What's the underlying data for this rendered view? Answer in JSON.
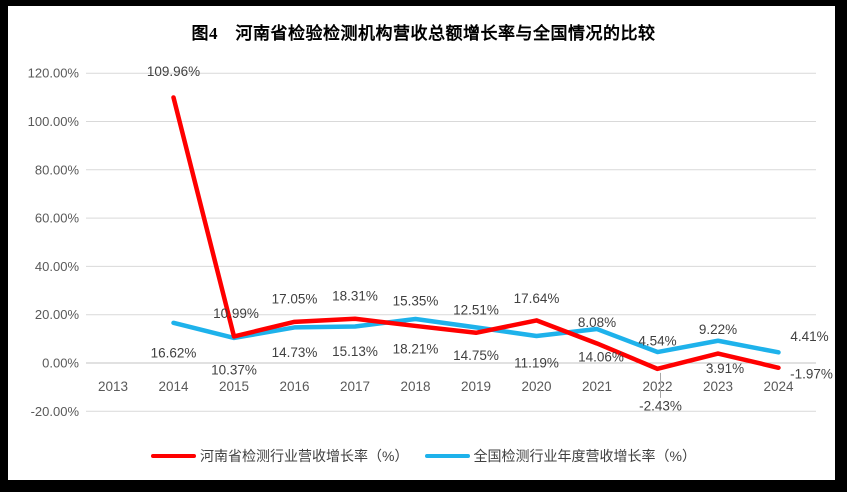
{
  "chart_data": {
    "type": "line",
    "title": "图4　河南省检验检测机构营收总额增长率与全国情况的比较",
    "x_categories": [
      "2013",
      "2014",
      "2015",
      "2016",
      "2017",
      "2018",
      "2019",
      "2020",
      "2021",
      "2022",
      "2023",
      "2024"
    ],
    "y_axis": {
      "ticks": [
        120,
        100,
        80,
        60,
        40,
        20,
        0,
        -20
      ],
      "tick_labels": [
        "120.00%",
        "100.00%",
        "80.00%",
        "60.00%",
        "40.00%",
        "20.00%",
        "0.00%",
        "-20.00%"
      ],
      "ylim": [
        -20,
        120
      ],
      "tick_step": 20
    },
    "grid": "horizontal",
    "legend_position": "bottom",
    "colors": {
      "henan": "#FF0000",
      "national": "#1EB2EB",
      "gridline": "#D9D9D9",
      "zero_line": "#C3C3C3",
      "axis_text": "#595959",
      "label_text": "#404040",
      "leader_line": "#A6A6A6"
    },
    "series": [
      {
        "key": "henan",
        "name": "河南省检测行业营收增长率（%）",
        "color": "#FF0000",
        "values": [
          null,
          109.96,
          10.99,
          17.05,
          18.31,
          15.35,
          12.51,
          17.64,
          8.08,
          -2.43,
          3.91,
          -1.97
        ],
        "data_labels": [
          null,
          "109.96%",
          "10.99%",
          "17.05%",
          "18.31%",
          "15.35%",
          "12.51%",
          "17.64%",
          "8.08%",
          "-2.43%",
          "3.91%",
          "-1.97%"
        ],
        "label_offsets": [
          null,
          [
            0,
            -26
          ],
          [
            2,
            -23
          ],
          [
            0,
            -23
          ],
          [
            0,
            -23
          ],
          [
            0,
            -25
          ],
          [
            0,
            -23
          ],
          [
            0,
            -22
          ],
          [
            0,
            -21
          ],
          [
            3,
            37,
            1
          ],
          [
            7,
            15
          ],
          [
            33,
            6
          ]
        ]
      },
      {
        "key": "national",
        "name": "全国检测行业年度营收增长率（%）",
        "color": "#1EB2EB",
        "values": [
          null,
          16.62,
          10.37,
          14.73,
          15.13,
          18.21,
          14.75,
          11.19,
          14.06,
          4.54,
          9.22,
          4.41
        ],
        "data_labels": [
          null,
          "16.62%",
          "10.37%",
          "14.73%",
          "15.13%",
          "18.21%",
          "14.75%",
          "11.19%",
          "14.06%",
          "4.54%",
          "9.22%",
          "4.41%"
        ],
        "label_offsets": [
          null,
          [
            0,
            30
          ],
          [
            0,
            32
          ],
          [
            0,
            25
          ],
          [
            0,
            25
          ],
          [
            0,
            30
          ],
          [
            0,
            28
          ],
          [
            0,
            27
          ],
          [
            4,
            28
          ],
          [
            0,
            -11
          ],
          [
            0,
            -11
          ],
          [
            31,
            -16
          ]
        ]
      }
    ]
  }
}
